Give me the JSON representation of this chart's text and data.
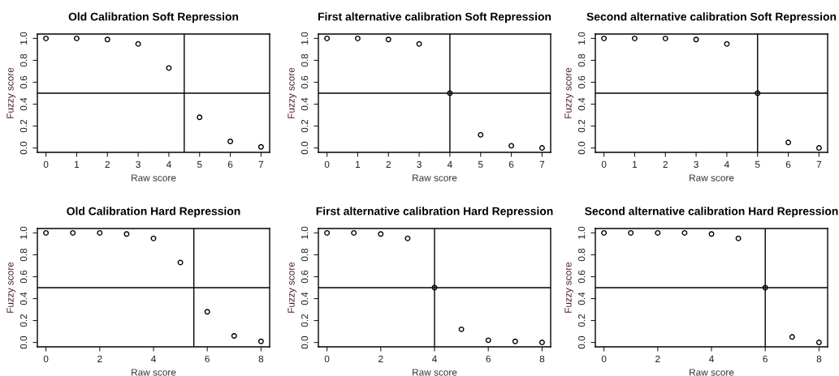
{
  "chart_data": [
    {
      "type": "scatter",
      "title": "Old Calibration Soft Repression",
      "xlabel": "Raw score",
      "ylabel": "Fuzzy score",
      "marker": "circle",
      "grid": false,
      "x": [
        0,
        1,
        2,
        3,
        4,
        5,
        6,
        7
      ],
      "series": [
        {
          "color": "#000000",
          "values": [
            1.0,
            1.0,
            0.99,
            0.95,
            0.73,
            0.28,
            0.06,
            0.01
          ]
        }
      ],
      "xlim": [
        -0.28,
        7.28
      ],
      "xticks": [
        0,
        1,
        2,
        3,
        4,
        5,
        6,
        7
      ],
      "ylim": [
        -0.04,
        1.04
      ],
      "yticks": [
        {
          "value": 0,
          "label": "0.0"
        },
        {
          "value": 0.2,
          "label": "0.2"
        },
        {
          "value": 0.4,
          "label": "0.4"
        },
        {
          "value": 0.6,
          "label": "0.6"
        },
        {
          "value": 0.8,
          "label": "0.8"
        },
        {
          "value": 1,
          "label": "1.0"
        }
      ],
      "ref_lines": [
        {
          "axis": "x",
          "value": 4.5,
          "color": "#000000"
        },
        {
          "axis": "y",
          "value": 0.5,
          "color": "#000000"
        }
      ]
    },
    {
      "type": "scatter",
      "title": "First alternative calibration Soft Repression",
      "xlabel": "Raw score",
      "ylabel": "Fuzzy score",
      "marker": "circle",
      "grid": false,
      "x": [
        0,
        1,
        2,
        3,
        4,
        5,
        6,
        7
      ],
      "series": [
        {
          "color": "#000000",
          "values": [
            1.0,
            1.0,
            0.99,
            0.95,
            0.5,
            0.12,
            0.02,
            0.0
          ]
        }
      ],
      "xlim": [
        -0.28,
        7.28
      ],
      "xticks": [
        0,
        1,
        2,
        3,
        4,
        5,
        6,
        7
      ],
      "ylim": [
        -0.04,
        1.04
      ],
      "yticks": [
        {
          "value": 0,
          "label": "0.0"
        },
        {
          "value": 0.2,
          "label": "0.2"
        },
        {
          "value": 0.4,
          "label": "0.4"
        },
        {
          "value": 0.6,
          "label": "0.6"
        },
        {
          "value": 0.8,
          "label": "0.8"
        },
        {
          "value": 1,
          "label": "1.0"
        }
      ],
      "ref_lines": [
        {
          "axis": "x",
          "value": 4,
          "color": "#000000"
        },
        {
          "axis": "y",
          "value": 0.5,
          "color": "#000000"
        }
      ]
    },
    {
      "type": "scatter",
      "title": "Second alternative calibration Soft Repression",
      "xlabel": "Raw score",
      "ylabel": "Fuzzy score",
      "marker": "circle",
      "grid": false,
      "x": [
        0,
        1,
        2,
        3,
        4,
        5,
        6,
        7
      ],
      "series": [
        {
          "color": "#000000",
          "values": [
            1.0,
            1.0,
            1.0,
            0.99,
            0.95,
            0.5,
            0.05,
            0.0
          ]
        }
      ],
      "xlim": [
        -0.28,
        7.28
      ],
      "xticks": [
        0,
        1,
        2,
        3,
        4,
        5,
        6,
        7
      ],
      "ylim": [
        -0.04,
        1.04
      ],
      "yticks": [
        {
          "value": 0,
          "label": "0.0"
        },
        {
          "value": 0.2,
          "label": "0.2"
        },
        {
          "value": 0.4,
          "label": "0.4"
        },
        {
          "value": 0.6,
          "label": "0.6"
        },
        {
          "value": 0.8,
          "label": "0.8"
        },
        {
          "value": 1,
          "label": "1.0"
        }
      ],
      "ref_lines": [
        {
          "axis": "x",
          "value": 5,
          "color": "#000000"
        },
        {
          "axis": "y",
          "value": 0.5,
          "color": "#000000"
        }
      ]
    },
    {
      "type": "scatter",
      "title": "Old Calibration Hard Repression",
      "xlabel": "Raw score",
      "ylabel": "Fuzzy score",
      "marker": "circle",
      "grid": false,
      "x": [
        0,
        1,
        2,
        3,
        4,
        5,
        6,
        7,
        8
      ],
      "series": [
        {
          "color": "#000000",
          "values": [
            1.0,
            1.0,
            1.0,
            0.99,
            0.95,
            0.73,
            0.28,
            0.06,
            0.01
          ]
        }
      ],
      "xlim": [
        -0.32,
        8.32
      ],
      "xticks": [
        0,
        2,
        4,
        6,
        8
      ],
      "ylim": [
        -0.04,
        1.04
      ],
      "yticks": [
        {
          "value": 0,
          "label": "0.0"
        },
        {
          "value": 0.2,
          "label": "0.2"
        },
        {
          "value": 0.4,
          "label": "0.4"
        },
        {
          "value": 0.6,
          "label": "0.6"
        },
        {
          "value": 0.8,
          "label": "0.8"
        },
        {
          "value": 1,
          "label": "1.0"
        }
      ],
      "ref_lines": [
        {
          "axis": "x",
          "value": 5.5,
          "color": "#000000"
        },
        {
          "axis": "y",
          "value": 0.5,
          "color": "#000000"
        }
      ]
    },
    {
      "type": "scatter",
      "title": "First alternative calibration Hard Repression",
      "xlabel": "Raw score",
      "ylabel": "Fuzzy score",
      "marker": "circle",
      "grid": false,
      "x": [
        0,
        1,
        2,
        3,
        4,
        5,
        6,
        7,
        8
      ],
      "series": [
        {
          "color": "#000000",
          "values": [
            1.0,
            1.0,
            0.99,
            0.95,
            0.5,
            0.12,
            0.02,
            0.01,
            0.0
          ]
        }
      ],
      "xlim": [
        -0.32,
        8.32
      ],
      "xticks": [
        0,
        2,
        4,
        6,
        8
      ],
      "ylim": [
        -0.04,
        1.04
      ],
      "yticks": [
        {
          "value": 0,
          "label": "0.0"
        },
        {
          "value": 0.2,
          "label": "0.2"
        },
        {
          "value": 0.4,
          "label": "0.4"
        },
        {
          "value": 0.6,
          "label": "0.6"
        },
        {
          "value": 0.8,
          "label": "0.8"
        },
        {
          "value": 1,
          "label": "1.0"
        }
      ],
      "ref_lines": [
        {
          "axis": "x",
          "value": 4,
          "color": "#000000"
        },
        {
          "axis": "y",
          "value": 0.5,
          "color": "#000000"
        }
      ]
    },
    {
      "type": "scatter",
      "title": "Second alternative calibration Hard Repression",
      "xlabel": "Raw score",
      "ylabel": "Fuzzy score",
      "marker": "circle",
      "grid": false,
      "x": [
        0,
        1,
        2,
        3,
        4,
        5,
        6,
        7,
        8
      ],
      "series": [
        {
          "color": "#000000",
          "values": [
            1.0,
            1.0,
            1.0,
            1.0,
            0.99,
            0.95,
            0.5,
            0.05,
            0.0
          ]
        }
      ],
      "xlim": [
        -0.32,
        8.32
      ],
      "xticks": [
        0,
        2,
        4,
        6,
        8
      ],
      "ylim": [
        -0.04,
        1.04
      ],
      "yticks": [
        {
          "value": 0,
          "label": "0.0"
        },
        {
          "value": 0.2,
          "label": "0.2"
        },
        {
          "value": 0.4,
          "label": "0.4"
        },
        {
          "value": 0.6,
          "label": "0.6"
        },
        {
          "value": 0.8,
          "label": "0.8"
        },
        {
          "value": 1,
          "label": "1.0"
        }
      ],
      "ref_lines": [
        {
          "axis": "x",
          "value": 6,
          "color": "#000000"
        },
        {
          "axis": "y",
          "value": 0.5,
          "color": "#000000"
        }
      ]
    }
  ]
}
